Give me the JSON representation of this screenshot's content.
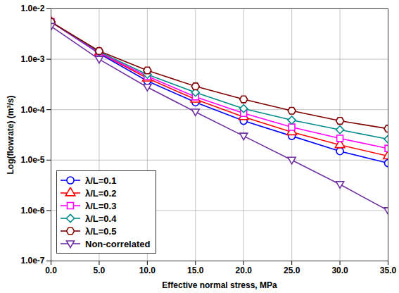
{
  "chart_data": {
    "type": "line",
    "x_label": "Effective normal stress, MPa",
    "y_label": "Log(flowrate) (m³/s)",
    "log": "y",
    "grid": true,
    "legend": "lower left",
    "xlim": [
      0,
      35
    ],
    "xticks": [
      {
        "value": 0,
        "label": "0.0"
      },
      {
        "value": 5,
        "label": "5.0"
      },
      {
        "value": 10,
        "label": "10.0"
      },
      {
        "value": 15,
        "label": "15.0"
      },
      {
        "value": 20,
        "label": "20.0"
      },
      {
        "value": 25,
        "label": "25.0"
      },
      {
        "value": 30,
        "label": "30.0"
      },
      {
        "value": 35,
        "label": "35.0"
      }
    ],
    "ylim": [
      1e-07,
      0.01
    ],
    "yticks": [
      {
        "value": 1e-07,
        "label": "1.0e-7"
      },
      {
        "value": 1e-06,
        "label": "1.0e-6"
      },
      {
        "value": 1e-05,
        "label": "1.0e-5"
      },
      {
        "value": 0.0001,
        "label": "1.0e-4"
      },
      {
        "value": 0.001,
        "label": "1.0e-3"
      },
      {
        "value": 0.01,
        "label": "1.0e-2"
      }
    ],
    "x": [
      0,
      5,
      10,
      15,
      20,
      25,
      30,
      35
    ],
    "series": [
      {
        "name": "λ/L=0.1",
        "color": "#0000ff",
        "marker": "circle",
        "values": [
          0.0055,
          0.0013,
          0.00037,
          0.00014,
          6e-05,
          3e-05,
          1.5e-05,
          8.7e-06
        ]
      },
      {
        "name": "λ/L=0.2",
        "color": "#ff0000",
        "marker": "triangle",
        "values": [
          0.0055,
          0.00135,
          0.00042,
          0.00016,
          7.2e-05,
          3.6e-05,
          2e-05,
          1.2e-05
        ]
      },
      {
        "name": "λ/L=0.3",
        "color": "#ff00ff",
        "marker": "square",
        "values": [
          0.0055,
          0.00135,
          0.00046,
          0.00018,
          8.5e-05,
          4.5e-05,
          2.7e-05,
          1.7e-05
        ]
      },
      {
        "name": "λ/L=0.4",
        "color": "#008b8b",
        "marker": "diamond",
        "values": [
          0.0055,
          0.0014,
          0.0005,
          0.00022,
          0.000105,
          6.2e-05,
          4e-05,
          2.6e-05
        ]
      },
      {
        "name": "λ/L=0.5",
        "color": "#800000",
        "marker": "hexagon",
        "values": [
          0.0055,
          0.00145,
          0.0006,
          0.00029,
          0.00016,
          9.5e-05,
          6e-05,
          4.2e-05
        ]
      },
      {
        "name": "Non-correlated",
        "color": "#7030a0",
        "marker": "triangle-down",
        "values": [
          0.0045,
          0.001,
          0.00028,
          9e-05,
          3e-05,
          1e-05,
          3.3e-06,
          1e-06
        ]
      }
    ]
  }
}
